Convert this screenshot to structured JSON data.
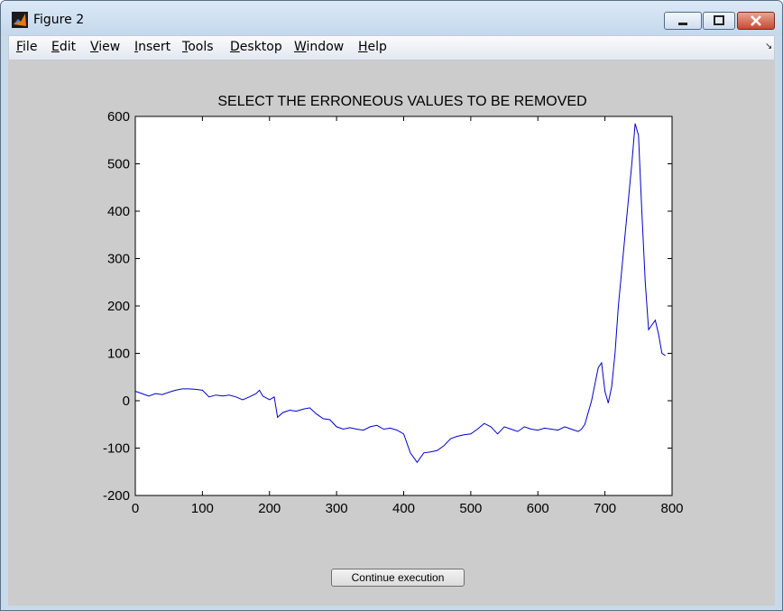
{
  "window": {
    "title": "Figure 2"
  },
  "menu": [
    {
      "label": "File",
      "mnemonic": "F"
    },
    {
      "label": "Edit",
      "mnemonic": "E"
    },
    {
      "label": "View",
      "mnemonic": "V"
    },
    {
      "label": "Insert",
      "mnemonic": "I"
    },
    {
      "label": "Tools",
      "mnemonic": "T"
    },
    {
      "label": "Desktop",
      "mnemonic": "D"
    },
    {
      "label": "Window",
      "mnemonic": "W"
    },
    {
      "label": "Help",
      "mnemonic": "H"
    }
  ],
  "colors": {
    "line": "#0000cc",
    "figure_bg": "#cccccc",
    "axes_bg": "#ffffff"
  },
  "chart_data": {
    "type": "line",
    "title": "SELECT THE ERRONEOUS VALUES TO BE REMOVED",
    "xlabel": "",
    "ylabel": "",
    "xlim": [
      0,
      800
    ],
    "ylim": [
      -200,
      600
    ],
    "xticks": [
      0,
      100,
      200,
      300,
      400,
      500,
      600,
      700,
      800
    ],
    "yticks": [
      -200,
      -100,
      0,
      100,
      200,
      300,
      400,
      500,
      600
    ],
    "grid": false,
    "series": [
      {
        "x": [
          0,
          10,
          20,
          30,
          40,
          50,
          60,
          70,
          80,
          90,
          100,
          110,
          120,
          130,
          140,
          150,
          160,
          170,
          180,
          185,
          190,
          200,
          207,
          212,
          220,
          230,
          240,
          250,
          260,
          270,
          280,
          290,
          300,
          310,
          320,
          330,
          340,
          350,
          360,
          370,
          380,
          390,
          400,
          410,
          420,
          430,
          440,
          450,
          460,
          470,
          480,
          490,
          500,
          510,
          520,
          530,
          540,
          550,
          560,
          570,
          580,
          590,
          600,
          610,
          620,
          630,
          640,
          650,
          660,
          665,
          670,
          680,
          690,
          695,
          700,
          705,
          710,
          715,
          720,
          730,
          740,
          745,
          750,
          755,
          760,
          765,
          770,
          775,
          780,
          785,
          790
        ],
        "y": [
          20,
          15,
          10,
          15,
          13,
          18,
          22,
          25,
          25,
          24,
          22,
          8,
          12,
          10,
          12,
          8,
          2,
          8,
          15,
          22,
          10,
          2,
          8,
          -35,
          -25,
          -20,
          -22,
          -18,
          -15,
          -28,
          -38,
          -40,
          -55,
          -60,
          -57,
          -60,
          -62,
          -55,
          -52,
          -60,
          -58,
          -62,
          -70,
          -110,
          -130,
          -110,
          -108,
          -105,
          -95,
          -80,
          -75,
          -72,
          -70,
          -60,
          -48,
          -55,
          -70,
          -55,
          -60,
          -65,
          -55,
          -60,
          -62,
          -58,
          -60,
          -62,
          -55,
          -60,
          -65,
          -60,
          -50,
          0,
          70,
          80,
          20,
          -5,
          30,
          100,
          200,
          350,
          500,
          585,
          560,
          400,
          250,
          150,
          160,
          170,
          140,
          100,
          95
        ]
      }
    ]
  },
  "button": {
    "label": "Continue execution"
  }
}
